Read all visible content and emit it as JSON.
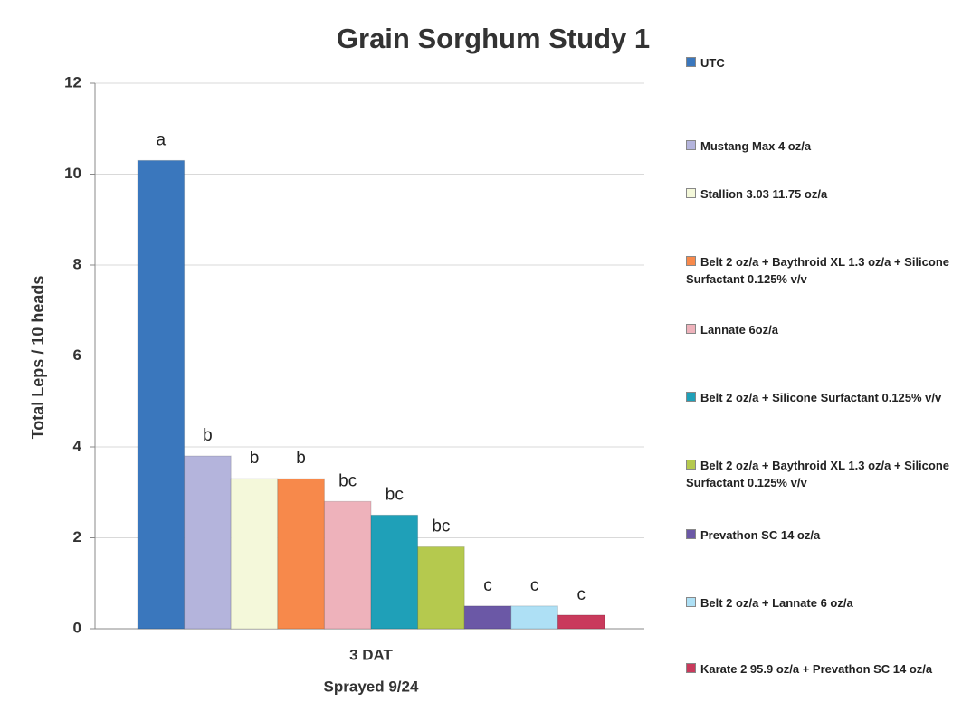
{
  "chart_data": {
    "type": "bar",
    "title": "Grain Sorghum Study 1",
    "ylabel": "Total Leps / 10 heads",
    "xlabel": "Sprayed 9/24",
    "categories": [
      "3 DAT"
    ],
    "series": [
      {
        "name": "UTC",
        "color": "#3a77bd",
        "values": [
          10.3
        ]
      },
      {
        "name": "Mustang Max 4 oz/a",
        "color": "#b4b4dc",
        "values": [
          3.8
        ]
      },
      {
        "name": "Stallion 3.03 11.75 oz/a",
        "color": "#f4f8da",
        "values": [
          3.3
        ]
      },
      {
        "name": "Belt 2 oz/a + Baythroid XL 1.3 oz/a + Silicone Surfactant 0.125% v/v",
        "color": "#f7894b",
        "values": [
          3.3
        ]
      },
      {
        "name": "Lannate 6oz/a",
        "color": "#eeb2bb",
        "values": [
          2.8
        ]
      },
      {
        "name": "Belt 2 oz/a + Silicone Surfactant 0.125% v/v",
        "color": "#1fa0b8",
        "values": [
          2.5
        ]
      },
      {
        "name": "Belt 2 oz/a + Baythroid XL 1.3 oz/a + Silicone Surfactant 0.125% v/v",
        "color": "#b5c94e",
        "values": [
          1.8
        ]
      },
      {
        "name": "Prevathon SC 14 oz/a",
        "color": "#6b58a6",
        "values": [
          0.5
        ]
      },
      {
        "name": "Belt 2 oz/a + Lannate 6 oz/a",
        "color": "#aee0f5",
        "values": [
          0.5
        ]
      },
      {
        "name": "Karate 2 95.9 oz/a + Prevathon SC 14 oz/a",
        "color": "#c93a5c",
        "values": [
          0.3
        ]
      }
    ],
    "annotations": [
      "a",
      "b",
      "b",
      "b",
      "bc",
      "bc",
      "bc",
      "c",
      "c",
      "c"
    ],
    "ylim": [
      0,
      12
    ],
    "yticks": [
      0,
      2,
      4,
      6,
      8,
      10,
      12
    ],
    "grid": true,
    "legend": "right"
  }
}
